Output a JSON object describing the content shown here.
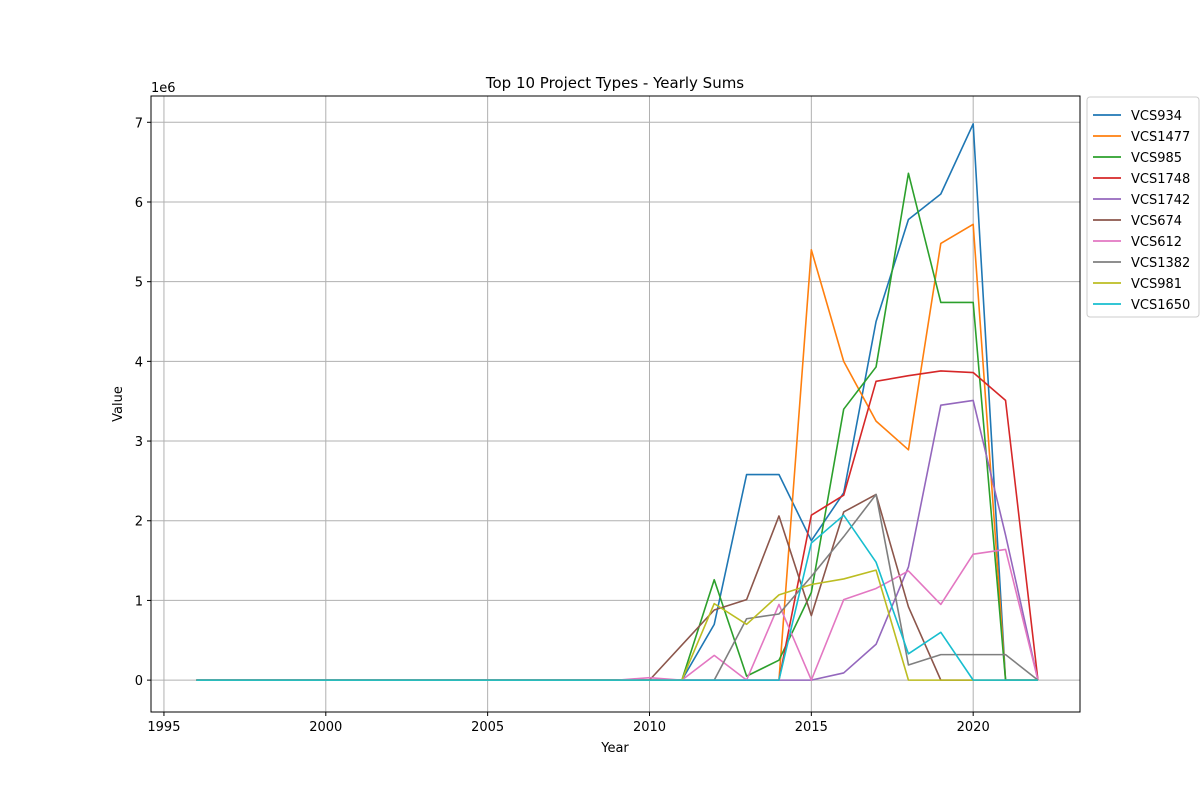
{
  "chart_data": {
    "type": "line",
    "title": "Top 10 Project Types - Yearly Sums",
    "xlabel": "Year",
    "ylabel": "Value",
    "y_multiplier_label": "1e6",
    "xlim": [
      1994.6,
      2023.3
    ],
    "ylim": [
      -400000,
      7330000
    ],
    "x_ticks": [
      1995,
      2000,
      2005,
      2010,
      2015,
      2020
    ],
    "y_ticks": [
      0,
      1000000,
      2000000,
      3000000,
      4000000,
      5000000,
      6000000,
      7000000
    ],
    "y_tick_labels": [
      "0",
      "1",
      "2",
      "3",
      "4",
      "5",
      "6",
      "7"
    ],
    "grid": true,
    "legend_position": "outside-top-right",
    "series": [
      {
        "name": "VCS934",
        "color": "#1f77b4",
        "points": [
          [
            1996,
            0
          ],
          [
            2010,
            0
          ],
          [
            2011,
            0
          ],
          [
            2012,
            700000
          ],
          [
            2013,
            2580000
          ],
          [
            2014,
            2580000
          ],
          [
            2015,
            1750000
          ],
          [
            2016,
            2350000
          ],
          [
            2017,
            4500000
          ],
          [
            2018,
            5780000
          ],
          [
            2019,
            6100000
          ],
          [
            2020,
            6980000
          ],
          [
            2021,
            0
          ],
          [
            2022,
            0
          ]
        ]
      },
      {
        "name": "VCS1477",
        "color": "#ff7f0e",
        "points": [
          [
            1996,
            0
          ],
          [
            2014,
            0
          ],
          [
            2015,
            5400000
          ],
          [
            2016,
            4000000
          ],
          [
            2017,
            3250000
          ],
          [
            2018,
            2890000
          ],
          [
            2019,
            5480000
          ],
          [
            2020,
            5720000
          ],
          [
            2021,
            0
          ],
          [
            2022,
            0
          ]
        ]
      },
      {
        "name": "VCS985",
        "color": "#2ca02c",
        "points": [
          [
            1996,
            0
          ],
          [
            2011,
            0
          ],
          [
            2012,
            1260000
          ],
          [
            2013,
            50000
          ],
          [
            2014,
            250000
          ],
          [
            2015,
            1100000
          ],
          [
            2016,
            3400000
          ],
          [
            2017,
            3930000
          ],
          [
            2018,
            6360000
          ],
          [
            2019,
            4740000
          ],
          [
            2020,
            4740000
          ],
          [
            2021,
            0
          ],
          [
            2022,
            0
          ]
        ]
      },
      {
        "name": "VCS1748",
        "color": "#d62728",
        "points": [
          [
            1996,
            0
          ],
          [
            2014,
            0
          ],
          [
            2015,
            2070000
          ],
          [
            2016,
            2320000
          ],
          [
            2017,
            3750000
          ],
          [
            2018,
            3820000
          ],
          [
            2019,
            3880000
          ],
          [
            2020,
            3860000
          ],
          [
            2021,
            3510000
          ],
          [
            2022,
            0
          ]
        ]
      },
      {
        "name": "VCS1742",
        "color": "#9467bd",
        "points": [
          [
            1996,
            0
          ],
          [
            2015,
            0
          ],
          [
            2016,
            90000
          ],
          [
            2017,
            450000
          ],
          [
            2018,
            1420000
          ],
          [
            2019,
            3450000
          ],
          [
            2020,
            3510000
          ],
          [
            2021,
            1820000
          ],
          [
            2022,
            0
          ]
        ]
      },
      {
        "name": "VCS674",
        "color": "#8c564b",
        "points": [
          [
            1996,
            0
          ],
          [
            2010,
            0
          ],
          [
            2012,
            880000
          ],
          [
            2013,
            1010000
          ],
          [
            2014,
            2060000
          ],
          [
            2015,
            810000
          ],
          [
            2016,
            2110000
          ],
          [
            2017,
            2330000
          ],
          [
            2018,
            920000
          ],
          [
            2019,
            0
          ],
          [
            2022,
            0
          ]
        ]
      },
      {
        "name": "VCS612",
        "color": "#e377c2",
        "points": [
          [
            1996,
            0
          ],
          [
            2009,
            0
          ],
          [
            2010,
            30000
          ],
          [
            2011,
            0
          ],
          [
            2012,
            310000
          ],
          [
            2013,
            0
          ],
          [
            2014,
            950000
          ],
          [
            2015,
            0
          ],
          [
            2016,
            1010000
          ],
          [
            2017,
            1150000
          ],
          [
            2018,
            1370000
          ],
          [
            2019,
            950000
          ],
          [
            2020,
            1580000
          ],
          [
            2021,
            1640000
          ],
          [
            2022,
            0
          ]
        ]
      },
      {
        "name": "VCS1382",
        "color": "#7f7f7f",
        "points": [
          [
            1996,
            0
          ],
          [
            2012,
            0
          ],
          [
            2013,
            770000
          ],
          [
            2014,
            830000
          ],
          [
            2015,
            1300000
          ],
          [
            2016,
            1800000
          ],
          [
            2017,
            2330000
          ],
          [
            2018,
            190000
          ],
          [
            2019,
            320000
          ],
          [
            2020,
            320000
          ],
          [
            2021,
            320000
          ],
          [
            2022,
            0
          ]
        ]
      },
      {
        "name": "VCS981",
        "color": "#bcbd22",
        "points": [
          [
            1996,
            0
          ],
          [
            2011,
            0
          ],
          [
            2012,
            960000
          ],
          [
            2013,
            700000
          ],
          [
            2014,
            1070000
          ],
          [
            2015,
            1200000
          ],
          [
            2016,
            1270000
          ],
          [
            2017,
            1380000
          ],
          [
            2018,
            0
          ],
          [
            2022,
            0
          ]
        ]
      },
      {
        "name": "VCS1650",
        "color": "#17becf",
        "points": [
          [
            1996,
            0
          ],
          [
            2014,
            0
          ],
          [
            2015,
            1720000
          ],
          [
            2016,
            2070000
          ],
          [
            2017,
            1480000
          ],
          [
            2018,
            330000
          ],
          [
            2019,
            600000
          ],
          [
            2020,
            0
          ],
          [
            2022,
            0
          ]
        ]
      }
    ]
  }
}
